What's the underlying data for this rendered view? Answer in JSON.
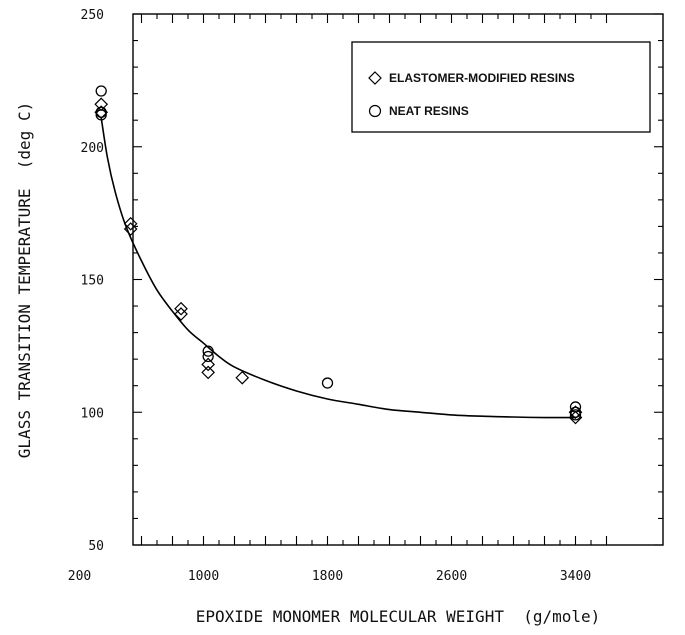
{
  "chart_data": {
    "type": "scatter",
    "title": "",
    "xlabel": "EPOXIDE MONOMER MOLECULAR WEIGHT  (g/mole)",
    "ylabel": "GLASS TRANSITION TEMPERATURE  (deg C)",
    "xlim": [
      200,
      3600
    ],
    "ylim": [
      50,
      250
    ],
    "x_ticks": [
      200,
      1000,
      1800,
      2600,
      3400
    ],
    "x_tick_labels": [
      "200",
      "1000",
      "1800",
      "2600",
      "3400"
    ],
    "y_ticks": [
      50,
      100,
      150,
      200,
      250
    ],
    "y_tick_labels": [
      "50",
      "100",
      "150",
      "200",
      "250"
    ],
    "grid": false,
    "legend_position": "top-right",
    "series": [
      {
        "name": "ELASTOMER-MODIFIED RESINS",
        "marker": "diamond",
        "points": [
          {
            "x": 340,
            "y": 216
          },
          {
            "x": 340,
            "y": 213
          },
          {
            "x": 530,
            "y": 171
          },
          {
            "x": 530,
            "y": 169
          },
          {
            "x": 855,
            "y": 139
          },
          {
            "x": 855,
            "y": 137
          },
          {
            "x": 1030,
            "y": 118
          },
          {
            "x": 1030,
            "y": 115
          },
          {
            "x": 1250,
            "y": 113
          },
          {
            "x": 3400,
            "y": 100
          },
          {
            "x": 3400,
            "y": 98
          }
        ]
      },
      {
        "name": "NEAT RESINS",
        "marker": "circle",
        "points": [
          {
            "x": 340,
            "y": 221
          },
          {
            "x": 340,
            "y": 213
          },
          {
            "x": 340,
            "y": 212
          },
          {
            "x": 1030,
            "y": 123
          },
          {
            "x": 1030,
            "y": 121
          },
          {
            "x": 1800,
            "y": 111
          },
          {
            "x": 3400,
            "y": 102
          },
          {
            "x": 3400,
            "y": 100
          },
          {
            "x": 3400,
            "y": 99
          }
        ]
      }
    ],
    "fit_curve": [
      {
        "x": 340,
        "y": 211
      },
      {
        "x": 380,
        "y": 196
      },
      {
        "x": 430,
        "y": 183
      },
      {
        "x": 500,
        "y": 170
      },
      {
        "x": 600,
        "y": 157
      },
      {
        "x": 700,
        "y": 146
      },
      {
        "x": 800,
        "y": 138
      },
      {
        "x": 900,
        "y": 131
      },
      {
        "x": 1000,
        "y": 126
      },
      {
        "x": 1100,
        "y": 121
      },
      {
        "x": 1200,
        "y": 117
      },
      {
        "x": 1400,
        "y": 112
      },
      {
        "x": 1600,
        "y": 108
      },
      {
        "x": 1800,
        "y": 105
      },
      {
        "x": 2000,
        "y": 103
      },
      {
        "x": 2200,
        "y": 101
      },
      {
        "x": 2400,
        "y": 100
      },
      {
        "x": 2600,
        "y": 99
      },
      {
        "x": 2800,
        "y": 98.5
      },
      {
        "x": 3000,
        "y": 98.2
      },
      {
        "x": 3200,
        "y": 98
      },
      {
        "x": 3400,
        "y": 98
      }
    ]
  }
}
